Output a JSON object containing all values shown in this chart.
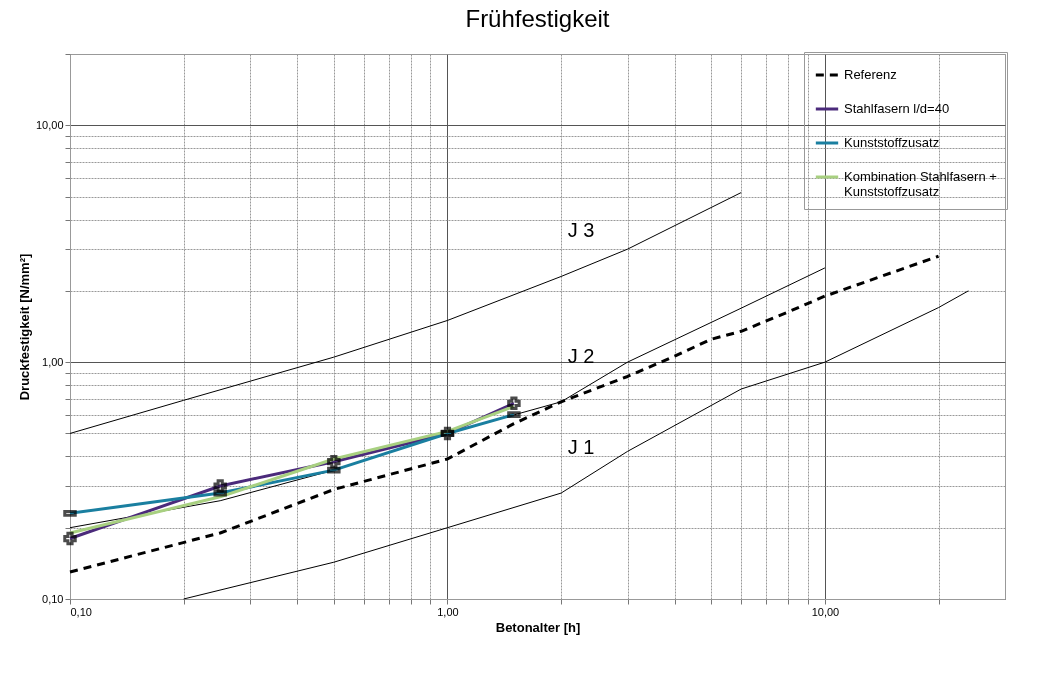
{
  "chart_data": {
    "type": "line",
    "title": "Frühfestigkeit",
    "xlabel": "Betonalter [h]",
    "ylabel": "Druckfestigkeit [N/mm²]",
    "log": "xy",
    "grid": true,
    "legend": "top right",
    "xlim": [
      0.1,
      30
    ],
    "ylim": [
      0.1,
      20
    ],
    "xticks": [
      {
        "value": 0.1,
        "label": "0,10"
      },
      {
        "value": 0.2,
        "label": null
      },
      {
        "value": 0.3,
        "label": null
      },
      {
        "value": 0.4,
        "label": null
      },
      {
        "value": 0.5,
        "label": null
      },
      {
        "value": 0.6,
        "label": null
      },
      {
        "value": 0.7,
        "label": null
      },
      {
        "value": 0.8,
        "label": null
      },
      {
        "value": 0.9,
        "label": null
      },
      {
        "value": 1,
        "label": "1,00"
      },
      {
        "value": 2,
        "label": null
      },
      {
        "value": 3,
        "label": null
      },
      {
        "value": 4,
        "label": null
      },
      {
        "value": 5,
        "label": null
      },
      {
        "value": 6,
        "label": null
      },
      {
        "value": 7,
        "label": null
      },
      {
        "value": 8,
        "label": null
      },
      {
        "value": 9,
        "label": null
      },
      {
        "value": 10,
        "label": "10,00"
      },
      {
        "value": 20,
        "label": null
      }
    ],
    "yticks": [
      {
        "value": 0.1,
        "label": "0,10"
      },
      {
        "value": 0.2,
        "label": null
      },
      {
        "value": 0.3,
        "label": null
      },
      {
        "value": 0.4,
        "label": null
      },
      {
        "value": 0.5,
        "label": null
      },
      {
        "value": 0.6,
        "label": null
      },
      {
        "value": 0.7,
        "label": null
      },
      {
        "value": 0.8,
        "label": null
      },
      {
        "value": 0.9,
        "label": null
      },
      {
        "value": 1,
        "label": "1,00"
      },
      {
        "value": 2,
        "label": null
      },
      {
        "value": 3,
        "label": null
      },
      {
        "value": 4,
        "label": null
      },
      {
        "value": 5,
        "label": null
      },
      {
        "value": 6,
        "label": null
      },
      {
        "value": 7,
        "label": null
      },
      {
        "value": 8,
        "label": null
      },
      {
        "value": 9,
        "label": null
      },
      {
        "value": 10,
        "label": "10,00"
      },
      {
        "value": 20,
        "label": null
      }
    ],
    "series": [
      {
        "name": "Referenz",
        "color": "#000000",
        "line_style": "dashed",
        "x": [
          0.1,
          0.25,
          0.5,
          1,
          1.5,
          2,
          3,
          4,
          5,
          6,
          8,
          10,
          20
        ],
        "values": [
          0.13,
          0.19,
          0.29,
          0.39,
          0.55,
          0.68,
          0.87,
          1.06,
          1.25,
          1.35,
          1.63,
          1.9,
          2.8
        ]
      },
      {
        "name": "Stahlfasern l/d=40",
        "color": "#4b2a7b",
        "marker": "cross",
        "x": [
          0.1,
          0.25,
          0.5,
          1,
          1.5
        ],
        "values": [
          0.18,
          0.3,
          0.38,
          0.5,
          0.67
        ]
      },
      {
        "name": "Kunststoffzusatz",
        "color": "#1a7fa0",
        "marker": "square",
        "x": [
          0.1,
          0.25,
          0.5,
          1,
          1.5
        ],
        "values": [
          0.23,
          0.28,
          0.35,
          0.5,
          0.6
        ]
      },
      {
        "name": "Kombination Stahlfasern + Kunststoffzusatz",
        "color": "#a8d080",
        "x": [
          0.1,
          0.25,
          0.5,
          1,
          1.5
        ],
        "values": [
          0.19,
          0.27,
          0.39,
          0.51,
          0.65
        ]
      },
      {
        "color": "#000000",
        "x": [
          0.1,
          0.2,
          0.5,
          1,
          2,
          3,
          6
        ],
        "values": [
          0.5,
          0.69,
          1.05,
          1.5,
          2.3,
          3.0,
          5.2
        ]
      },
      {
        "color": "#000000",
        "x": [
          0.1,
          0.25,
          0.5,
          1,
          2,
          3,
          6,
          10
        ],
        "values": [
          0.2,
          0.26,
          0.35,
          0.5,
          0.68,
          1.0,
          1.69,
          2.5
        ]
      },
      {
        "color": "#000000",
        "x": [
          0.2,
          0.5,
          1,
          2,
          3,
          6,
          10,
          20,
          24
        ],
        "values": [
          0.1,
          0.143,
          0.2,
          0.28,
          0.42,
          0.77,
          1.0,
          1.7,
          2.0
        ]
      }
    ],
    "annotations": [
      "J 3",
      "J 2",
      "J 1"
    ]
  }
}
